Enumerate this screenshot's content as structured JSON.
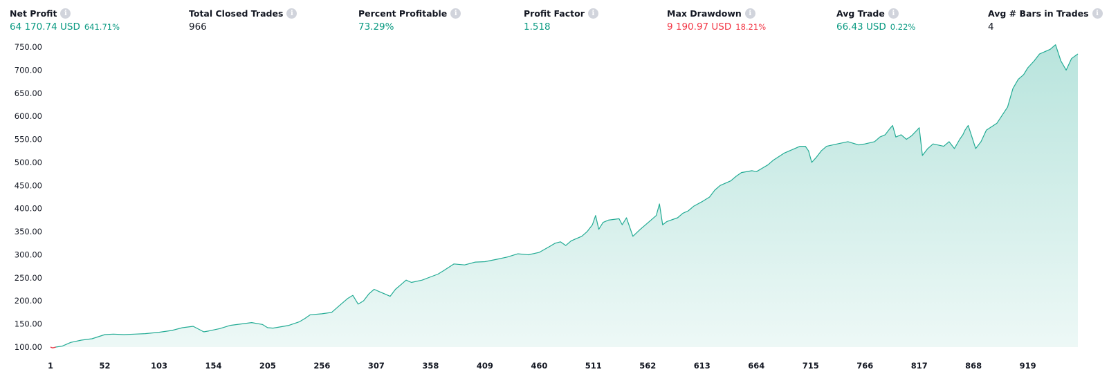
{
  "metrics": [
    {
      "label": "Net Profit",
      "value": "64 170.74 USD",
      "pct": "641.71%",
      "tone": "pos"
    },
    {
      "label": "Total Closed Trades",
      "value": "966",
      "pct": "",
      "tone": "neutral"
    },
    {
      "label": "Percent Profitable",
      "value": "73.29%",
      "pct": "",
      "tone": "pos"
    },
    {
      "label": "Profit Factor",
      "value": "1.518",
      "pct": "",
      "tone": "pos"
    },
    {
      "label": "Max Drawdown",
      "value": "9 190.97 USD",
      "pct": "18.21%",
      "tone": "neg"
    },
    {
      "label": "Avg Trade",
      "value": "66.43 USD",
      "pct": "0.22%",
      "tone": "pos"
    },
    {
      "label": "Avg # Bars in Trades",
      "value": "4",
      "pct": "",
      "tone": "neutral"
    }
  ],
  "info_glyph": "i",
  "chart_data": {
    "type": "area",
    "title": "",
    "xlabel": "",
    "ylabel": "",
    "xlim": [
      1,
      966
    ],
    "ylim": [
      100,
      750
    ],
    "y_ticks": [
      "100.00",
      "150.00",
      "200.00",
      "250.00",
      "300.00",
      "350.00",
      "400.00",
      "450.00",
      "500.00",
      "550.00",
      "600.00",
      "650.00",
      "700.00",
      "750.00"
    ],
    "x_ticks": [
      "1",
      "52",
      "103",
      "154",
      "205",
      "256",
      "307",
      "358",
      "409",
      "460",
      "511",
      "562",
      "613",
      "664",
      "715",
      "766",
      "817",
      "868",
      "919"
    ],
    "grid": false,
    "legend": "none",
    "line_color": "#22ab94",
    "fill_color": "#22ab94",
    "drawdown_color": "#f23645",
    "series": [
      {
        "x": [
          1,
          3,
          6,
          12,
          20,
          30,
          40,
          52,
          60,
          70,
          80,
          90,
          103,
          115,
          125,
          135,
          140,
          145,
          150,
          160,
          170,
          180,
          190,
          200,
          205,
          210,
          220,
          225,
          235,
          240,
          245,
          256,
          265,
          270,
          275,
          280,
          285,
          290,
          295,
          300,
          305,
          310,
          315,
          320,
          325,
          330,
          335,
          340,
          350,
          358,
          365,
          370,
          380,
          390,
          400,
          409,
          420,
          430,
          440,
          450,
          460,
          470,
          475,
          480,
          485,
          490,
          495,
          500,
          505,
          510,
          513,
          516,
          520,
          525,
          535,
          538,
          542,
          548,
          555,
          560,
          565,
          570,
          573,
          576,
          580,
          590,
          595,
          600,
          605,
          613,
          620,
          625,
          630,
          640,
          645,
          650,
          660,
          664,
          670,
          675,
          680,
          690,
          700,
          705,
          710,
          713,
          716,
          720,
          725,
          730,
          740,
          750,
          760,
          766,
          775,
          780,
          785,
          789,
          792,
          795,
          800,
          805,
          810,
          815,
          817,
          820,
          825,
          830,
          840,
          845,
          850,
          855,
          858,
          860,
          863,
          870,
          875,
          880,
          890,
          900,
          905,
          910,
          915,
          919,
          925,
          930,
          935,
          940,
          945,
          950,
          955,
          960,
          966
        ],
        "y": [
          100,
          98,
          100,
          102,
          110,
          115,
          118,
          127,
          128,
          127,
          128,
          129,
          132,
          136,
          142,
          145,
          139,
          133,
          135,
          140,
          147,
          150,
          153,
          149,
          142,
          141,
          145,
          147,
          155,
          162,
          170,
          172,
          175,
          185,
          195,
          205,
          212,
          193,
          200,
          215,
          225,
          220,
          215,
          210,
          225,
          235,
          245,
          240,
          245,
          252,
          258,
          265,
          280,
          278,
          284,
          285,
          290,
          295,
          302,
          300,
          305,
          318,
          325,
          328,
          320,
          330,
          335,
          340,
          350,
          365,
          385,
          355,
          370,
          375,
          378,
          365,
          380,
          340,
          355,
          365,
          375,
          385,
          410,
          365,
          372,
          380,
          390,
          395,
          405,
          415,
          425,
          440,
          450,
          460,
          470,
          478,
          482,
          480,
          488,
          495,
          505,
          520,
          530,
          535,
          535,
          525,
          500,
          510,
          525,
          535,
          540,
          545,
          538,
          540,
          545,
          555,
          560,
          572,
          580,
          555,
          560,
          550,
          558,
          570,
          575,
          515,
          530,
          540,
          535,
          545,
          530,
          550,
          560,
          570,
          580,
          530,
          545,
          570,
          585,
          620,
          660,
          680,
          690,
          705,
          720,
          735,
          740,
          745,
          755,
          720,
          700,
          725,
          735
        ]
      }
    ]
  }
}
